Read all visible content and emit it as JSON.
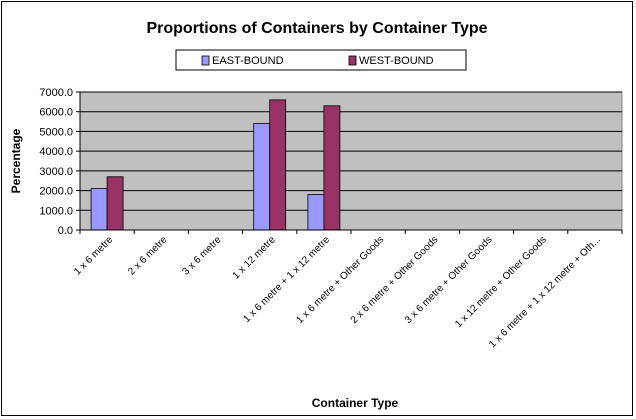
{
  "chart_data": {
    "type": "bar",
    "title": "Proportions of Containers by Container Type",
    "xlabel": "Container Type",
    "ylabel": "Percentage",
    "ylim": [
      0,
      7000
    ],
    "yticks": [
      "0.0",
      "1000.0",
      "2000.0",
      "3000.0",
      "4000.0",
      "5000.0",
      "6000.0",
      "7000.0"
    ],
    "grid": true,
    "legend_position": "top",
    "categories": [
      "1 x 6 metre",
      "2 x 6 metre",
      "3 x 6 metre",
      "1 x 12 metre",
      "1 x 6 metre + 1 x 12 metre",
      "1 x 6 metre + Other Goods",
      "2 x 6 metre + Other Goods",
      "3 x 6 metre + Other Goods",
      "1 x 12 metre + Other Goods",
      "1 x 6 metre + 1 x 12 metre + Oth..."
    ],
    "series": [
      {
        "name": "EAST-BOUND",
        "color": "#9999ff",
        "values": [
          2100,
          0,
          0,
          5400,
          1800,
          0,
          0,
          0,
          0,
          0
        ]
      },
      {
        "name": "WEST-BOUND",
        "color": "#993366",
        "values": [
          2700,
          0,
          0,
          6600,
          6300,
          0,
          0,
          0,
          0,
          0
        ]
      }
    ],
    "plot_background": "#c0c0c0"
  }
}
